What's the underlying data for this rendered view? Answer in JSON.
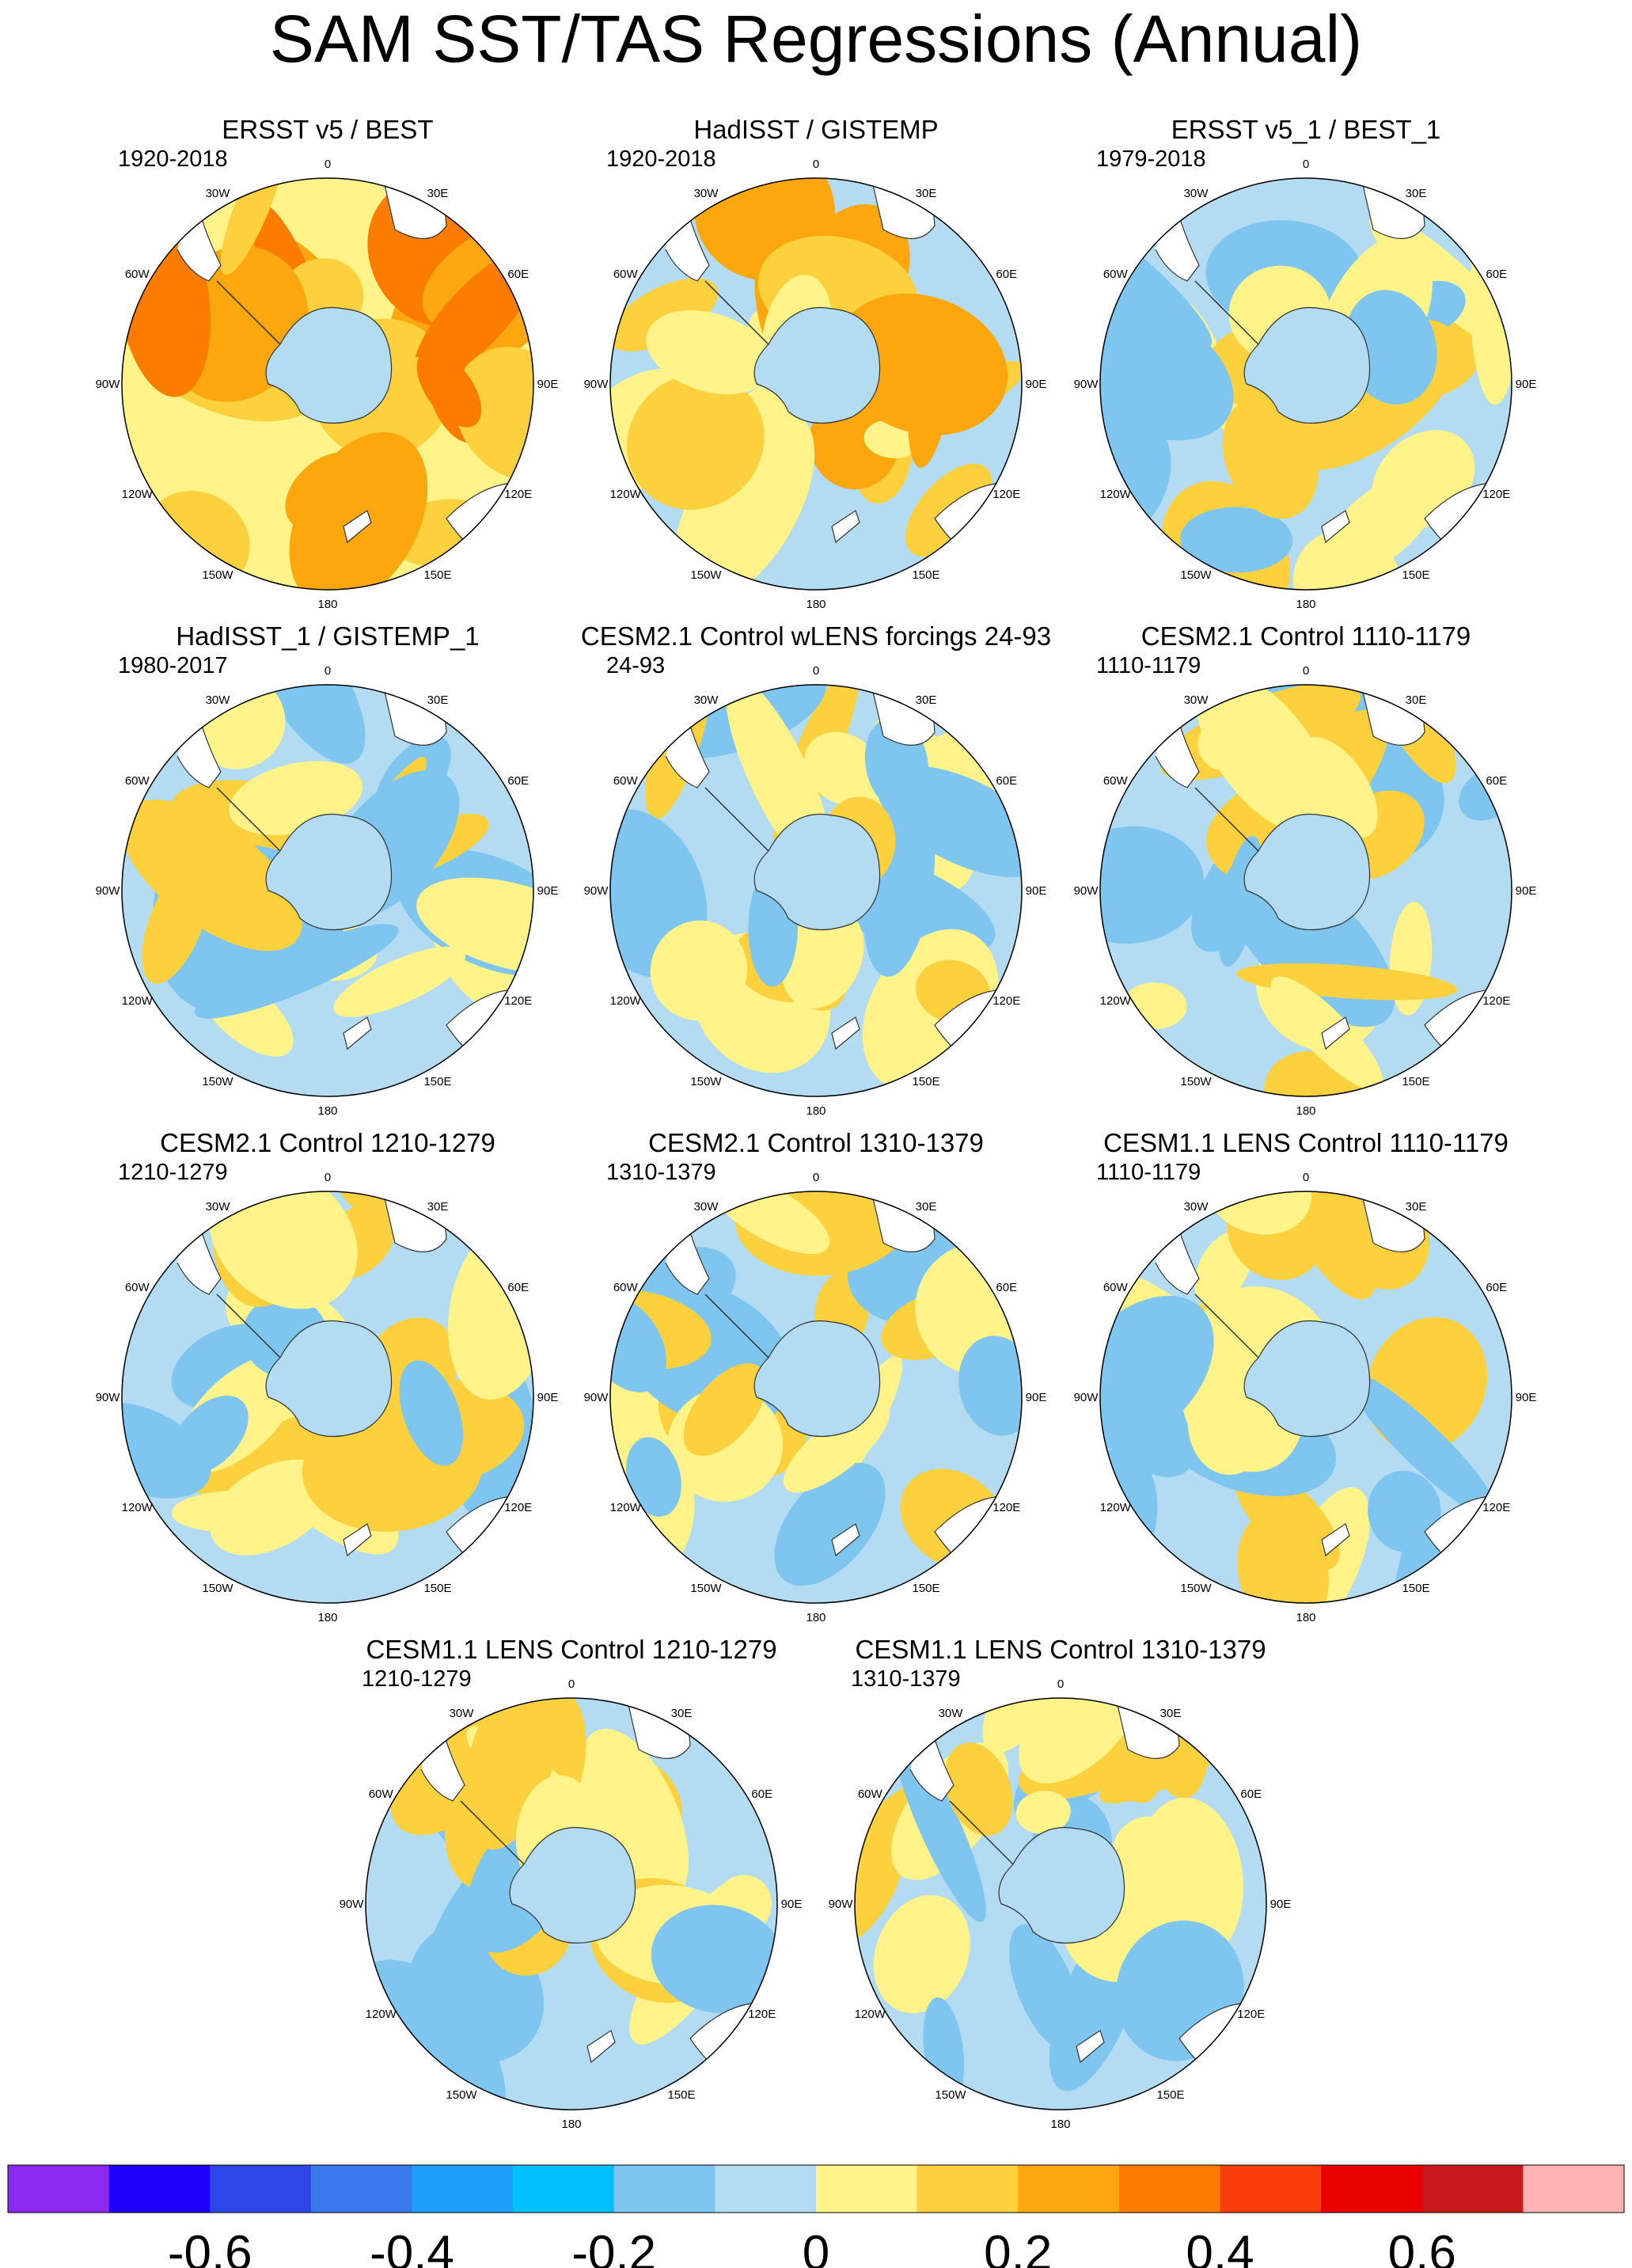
{
  "title": "SAM SST/TAS Regressions (Annual)",
  "lon_labels": [
    "0",
    "30E",
    "60E",
    "90E",
    "120E",
    "150E",
    "180",
    "150W",
    "120W",
    "90W",
    "60W",
    "30W"
  ],
  "panels": [
    {
      "title": "ERSST v5 / BEST",
      "period": "1920-2018",
      "palette": [
        "#fff38a",
        "#fcd13d",
        "#fca70e",
        "#fc7c00"
      ],
      "seed": 1
    },
    {
      "title": "HadISST / GISTEMP",
      "period": "1920-2018",
      "palette": [
        "#b3dbf2",
        "#fff38a",
        "#fcd13d",
        "#fca70e"
      ],
      "seed": 2
    },
    {
      "title": "ERSST v5_1 / BEST_1",
      "period": "1979-2018",
      "palette": [
        "#b3dbf2",
        "#fff38a",
        "#fcd13d",
        "#7ec5f0"
      ],
      "seed": 3
    },
    {
      "title": "HadISST_1 / GISTEMP_1",
      "period": "1980-2017",
      "palette": [
        "#b3dbf2",
        "#fff38a",
        "#fcd13d",
        "#7ec5f0"
      ],
      "seed": 4
    },
    {
      "title": "CESM2.1 Control wLENS forcings 24-93",
      "period": "24-93",
      "palette": [
        "#b3dbf2",
        "#fff38a",
        "#7ec5f0",
        "#fcd13d"
      ],
      "seed": 5
    },
    {
      "title": "CESM2.1 Control 1110-1179",
      "period": "1110-1179",
      "palette": [
        "#b3dbf2",
        "#fff38a",
        "#7ec5f0",
        "#fcd13d"
      ],
      "seed": 6
    },
    {
      "title": "CESM2.1 Control 1210-1279",
      "period": "1210-1279",
      "palette": [
        "#b3dbf2",
        "#fff38a",
        "#7ec5f0",
        "#fcd13d"
      ],
      "seed": 7
    },
    {
      "title": "CESM2.1 Control 1310-1379",
      "period": "1310-1379",
      "palette": [
        "#b3dbf2",
        "#fff38a",
        "#7ec5f0",
        "#fcd13d"
      ],
      "seed": 8
    },
    {
      "title": "CESM1.1 LENS Control 1110-1179",
      "period": "1110-1179",
      "palette": [
        "#b3dbf2",
        "#fff38a",
        "#7ec5f0",
        "#fcd13d"
      ],
      "seed": 9
    },
    {
      "title": "CESM1.1 LENS Control 1210-1279",
      "period": "1210-1279",
      "palette": [
        "#b3dbf2",
        "#fff38a",
        "#7ec5f0",
        "#fcd13d"
      ],
      "seed": 10
    },
    {
      "title": "CESM1.1 LENS Control 1310-1379",
      "period": "1310-1379",
      "palette": [
        "#b3dbf2",
        "#fff38a",
        "#7ec5f0",
        "#fcd13d"
      ],
      "seed": 11
    }
  ],
  "colorbar": {
    "colors": [
      "#8b2aef",
      "#1e00fa",
      "#2d46e8",
      "#3a78ee",
      "#1ea0fa",
      "#00c0fb",
      "#7ec5f0",
      "#b3dbf2",
      "#fff38a",
      "#fcd13d",
      "#fca70e",
      "#fc7c00",
      "#fb3d0a",
      "#e80000",
      "#c81a1a",
      "#ffb3b3"
    ],
    "tick_values": [
      -0.6,
      -0.4,
      -0.2,
      0,
      0.2,
      0.4,
      0.6
    ],
    "tick_labels": [
      "-0.6",
      "-0.4",
      "-0.2",
      "0",
      "0.2",
      "0.4",
      "0.6"
    ],
    "range": [
      -0.8,
      0.8
    ]
  }
}
